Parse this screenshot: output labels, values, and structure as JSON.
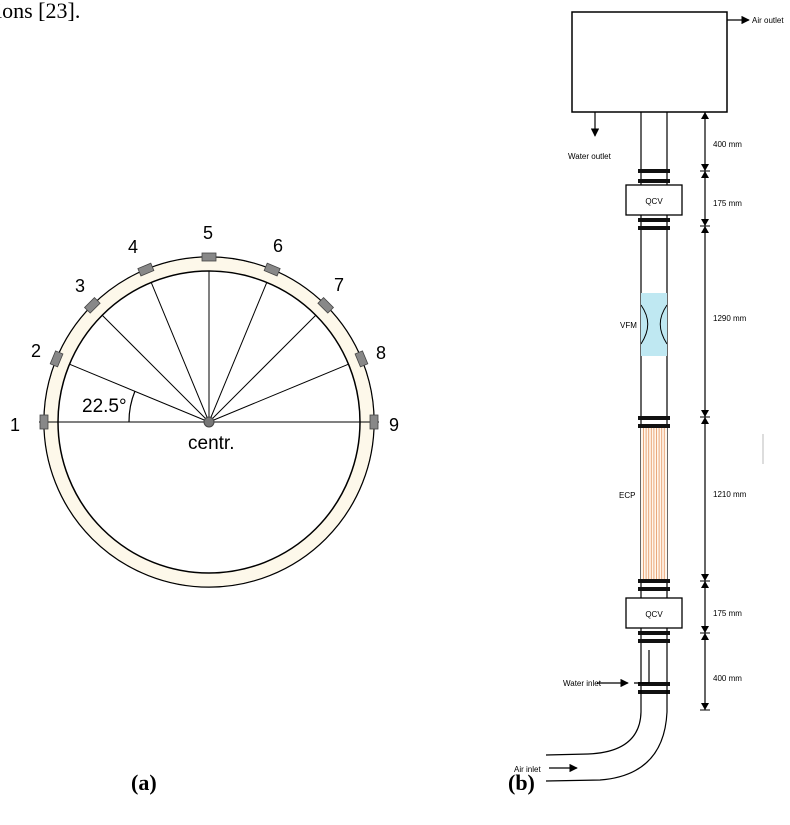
{
  "top_fragment": "ions [23].",
  "panel_a": {
    "caption": "(a)",
    "angle_label": "22.5°",
    "center_label": "centr.",
    "sensors": [
      "1",
      "2",
      "3",
      "4",
      "5",
      "6",
      "7",
      "8",
      "9"
    ]
  },
  "panel_b": {
    "caption": "(b)",
    "air_outlet": "Air outlet",
    "water_outlet": "Water outlet",
    "qcv_top": "QCV",
    "qcv_bottom": "QCV",
    "vfm": "VFM",
    "ecp": "ECP",
    "water_inlet": "Water inlet",
    "air_inlet": "Air inlet",
    "dimensions": [
      "400 mm",
      "175 mm",
      "1290 mm",
      "1210 mm",
      "175 mm",
      "400 mm"
    ]
  },
  "colors": {
    "ring_fill": "#fdf8ea",
    "venturi": "#bfe8f2",
    "ecp_lines": "#e8a070"
  }
}
